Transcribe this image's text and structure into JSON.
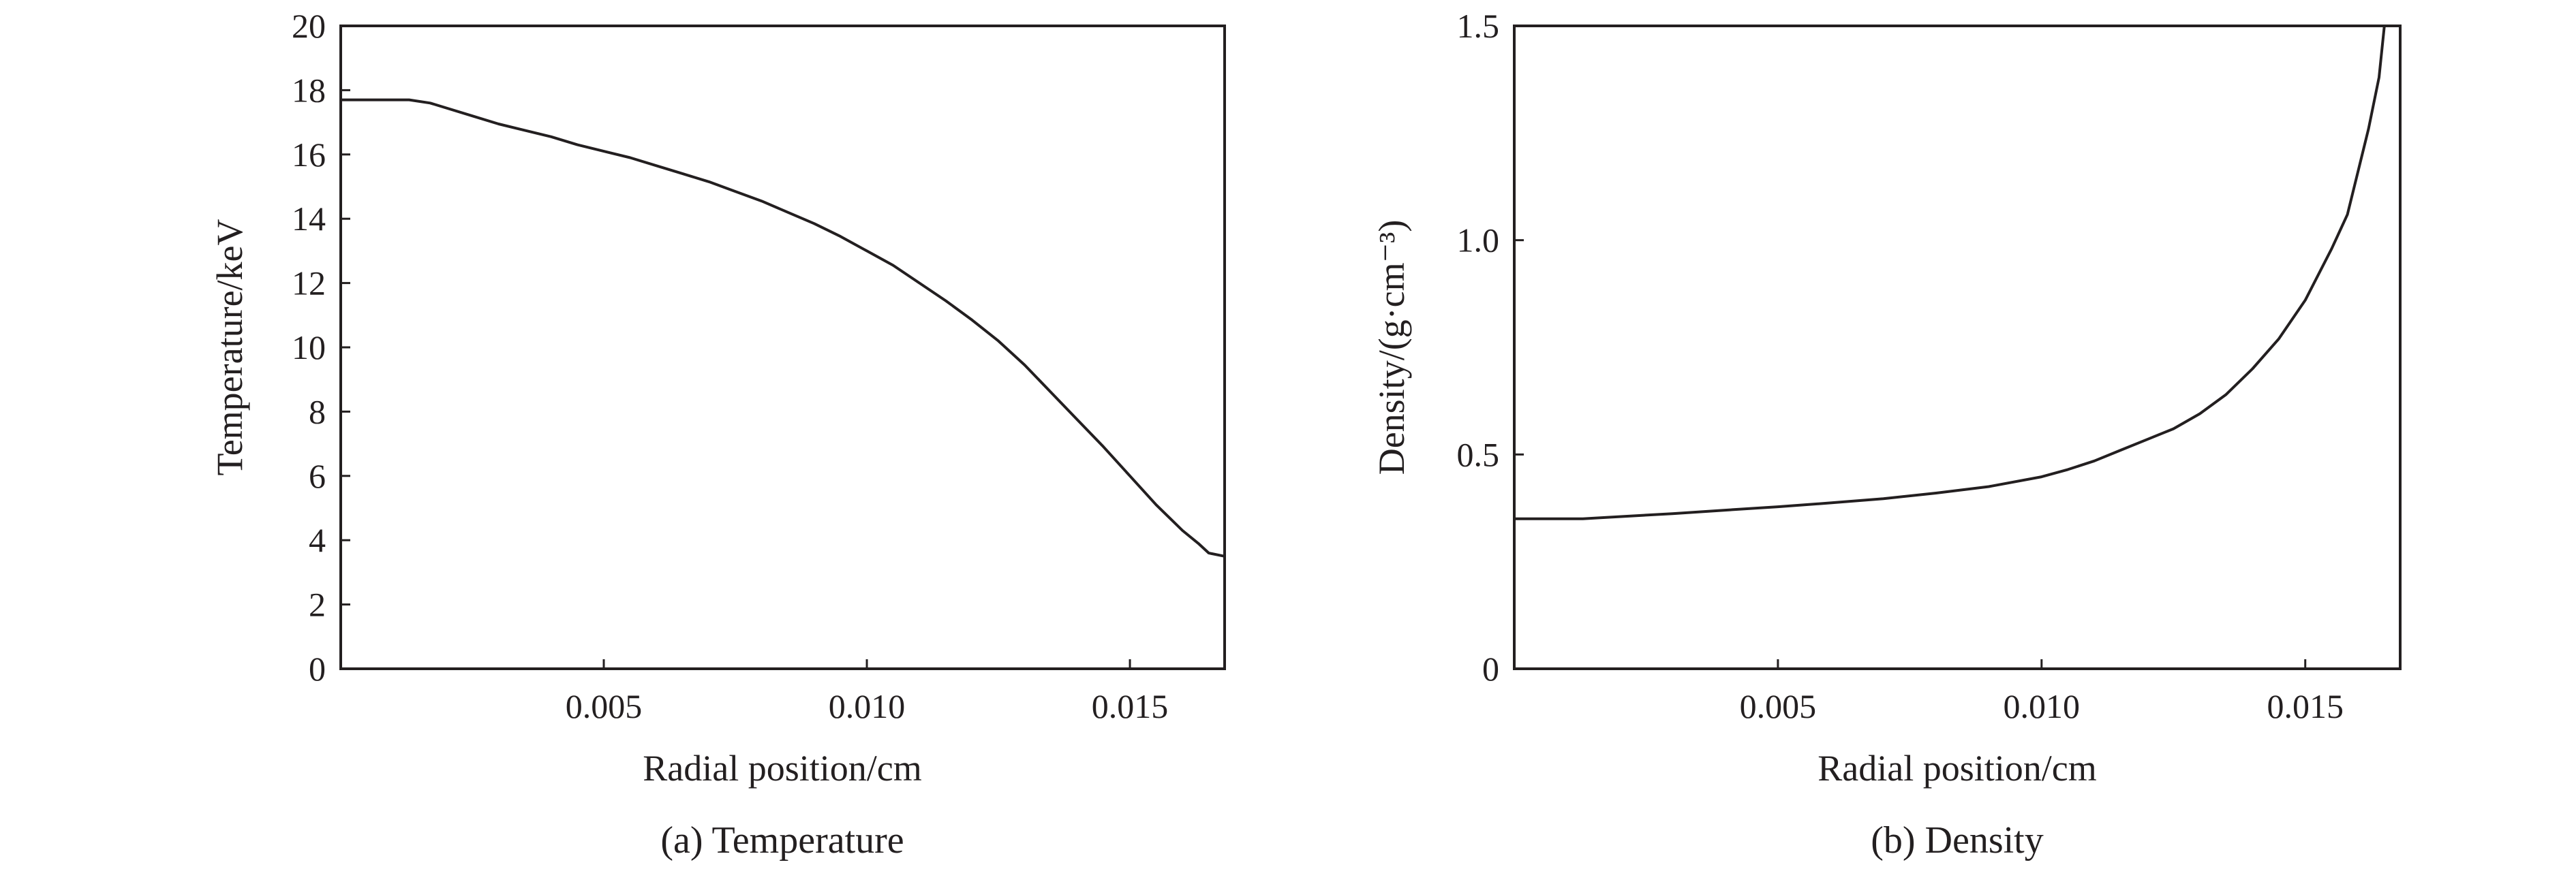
{
  "chart_data": [
    {
      "type": "line",
      "caption": "(a) Temperature",
      "xlabel": "Radial position/cm",
      "ylabel": "Temperature/keV",
      "xlim": [
        0,
        0.0168
      ],
      "ylim": [
        0,
        20
      ],
      "xticks": [
        0.005,
        0.01,
        0.015
      ],
      "xtick_labels": [
        "0.005",
        "0.010",
        "0.015"
      ],
      "yticks": [
        0,
        2,
        4,
        6,
        8,
        10,
        12,
        14,
        16,
        18,
        20
      ],
      "ytick_labels": [
        "0",
        "2",
        "4",
        "6",
        "8",
        "10",
        "12",
        "14",
        "16",
        "18",
        "20"
      ],
      "grid": false,
      "series": [
        {
          "x": [
            0,
            0.0013,
            0.0017,
            0.002,
            0.0025,
            0.003,
            0.0035,
            0.004,
            0.0045,
            0.005,
            0.0055,
            0.006,
            0.0065,
            0.007,
            0.0075,
            0.008,
            0.0085,
            0.009,
            0.0095,
            0.01,
            0.0105,
            0.011,
            0.0115,
            0.012,
            0.0125,
            0.013,
            0.0135,
            0.014,
            0.0145,
            0.015,
            0.0155,
            0.016,
            0.0163,
            0.0165,
            0.0168
          ],
          "y": [
            17.7,
            17.7,
            17.6,
            17.45,
            17.2,
            16.95,
            16.75,
            16.55,
            16.3,
            16.1,
            15.9,
            15.65,
            15.4,
            15.15,
            14.85,
            14.55,
            14.2,
            13.85,
            13.45,
            13.0,
            12.55,
            12.0,
            11.45,
            10.85,
            10.2,
            9.45,
            8.6,
            7.75,
            6.9,
            6.0,
            5.1,
            4.3,
            3.9,
            3.6,
            3.5
          ]
        }
      ]
    },
    {
      "type": "line",
      "caption": "(b) Density",
      "xlabel": "Radial position/cm",
      "ylabel": "Density/(g·cm⁻³)",
      "xlim": [
        0,
        0.0168
      ],
      "ylim": [
        0,
        1.5
      ],
      "xticks": [
        0.005,
        0.01,
        0.015
      ],
      "xtick_labels": [
        "0.005",
        "0.010",
        "0.015"
      ],
      "yticks": [
        0,
        0.5,
        1.0,
        1.5
      ],
      "ytick_labels": [
        "0",
        "0.5",
        "1.0",
        "1.5"
      ],
      "grid": false,
      "series": [
        {
          "x": [
            0,
            0.0013,
            0.002,
            0.003,
            0.004,
            0.005,
            0.006,
            0.007,
            0.008,
            0.009,
            0.01,
            0.0105,
            0.011,
            0.0115,
            0.012,
            0.0125,
            0.013,
            0.0135,
            0.014,
            0.0145,
            0.015,
            0.0155,
            0.0158,
            0.016,
            0.0162,
            0.0164,
            0.0165
          ],
          "y": [
            0.35,
            0.35,
            0.355,
            0.362,
            0.37,
            0.378,
            0.387,
            0.397,
            0.41,
            0.425,
            0.448,
            0.465,
            0.485,
            0.51,
            0.535,
            0.56,
            0.595,
            0.64,
            0.7,
            0.77,
            0.86,
            0.98,
            1.06,
            1.16,
            1.26,
            1.38,
            1.5
          ]
        }
      ]
    }
  ]
}
